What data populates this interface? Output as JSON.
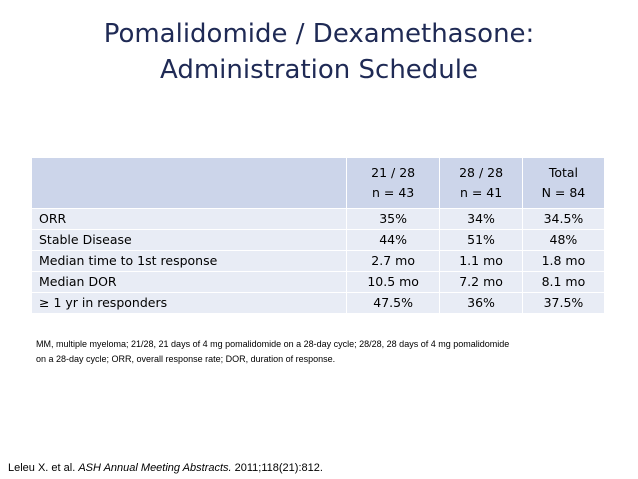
{
  "title": {
    "line1": "Pomalidomide / Dexamethasone:",
    "line2": "Administration Schedule"
  },
  "table": {
    "columns": [
      {
        "line1": "21 / 28",
        "line2": "n = 43"
      },
      {
        "line1": "28 / 28",
        "line2": "n = 41"
      },
      {
        "line1": "Total",
        "line2": "N = 84"
      }
    ],
    "rows": [
      {
        "label": "ORR",
        "values": [
          "35%",
          "34%",
          "34.5%"
        ]
      },
      {
        "label": "Stable Disease",
        "values": [
          "44%",
          "51%",
          "48%"
        ]
      },
      {
        "label": "Median time to 1st response",
        "values": [
          "2.7 mo",
          "1.1 mo",
          "1.8 mo"
        ]
      },
      {
        "label": "Median DOR",
        "values": [
          "10.5 mo",
          "7.2 mo",
          "8.1 mo"
        ]
      },
      {
        "label": "≥ 1 yr in responders",
        "values": [
          "47.5%",
          "36%",
          "37.5%"
        ]
      }
    ]
  },
  "footnote": {
    "line1": "MM, multiple myeloma; 21/28, 21 days of 4 mg pomalidomide on a 28-day cycle; 28/28, 28 days of 4 mg pomalidomide",
    "line2": "on a 28-day cycle; ORR, overall response rate; DOR, duration of response."
  },
  "citation": {
    "authors": "Leleu X. et al. ",
    "journal": "ASH Annual Meeting Abstracts.",
    "details": " 2011;118(21):812."
  },
  "colors": {
    "title": "#1f2a55",
    "header_fill": "#ccd5ea",
    "row_fill": "#e8ecf5"
  }
}
